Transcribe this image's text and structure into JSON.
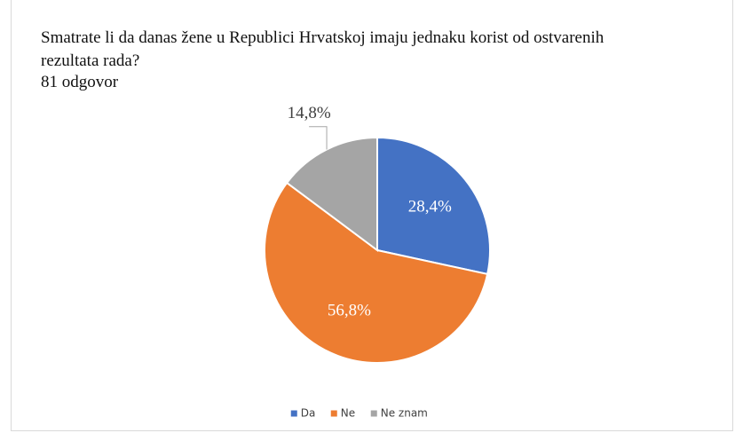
{
  "chart_data": {
    "type": "pie",
    "title": "Smatrate li da danas žene u Republici Hrvatskoj imaju jednaku korist od ostvarenih rezultata rada?",
    "subtitle": "81 odgovor",
    "categories": [
      "Da",
      "Ne",
      "Ne znam"
    ],
    "values": [
      28.4,
      56.8,
      14.8
    ],
    "value_labels": [
      "28,4%",
      "56,8%",
      "14,8%"
    ],
    "colors": [
      "#4472c4",
      "#ed7d31",
      "#a5a5a5"
    ],
    "legend": "bottom"
  }
}
